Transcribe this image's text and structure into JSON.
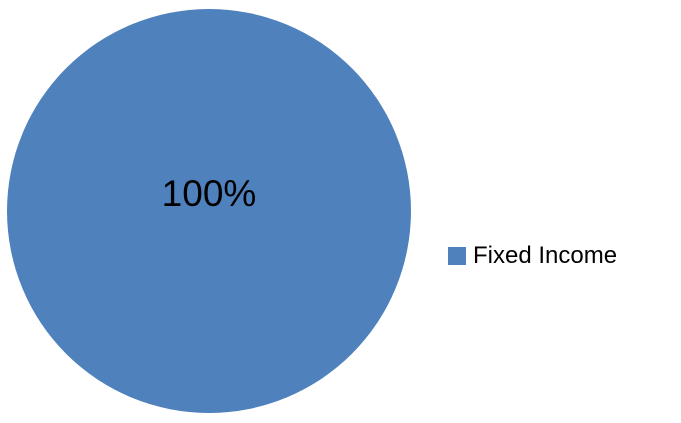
{
  "chart_data": {
    "type": "pie",
    "categories": [
      "Fixed Income"
    ],
    "values": [
      100
    ],
    "data_labels": [
      "100%"
    ],
    "colors": [
      "#4F81BD"
    ],
    "title": "",
    "legend_position": "right"
  },
  "legend": {
    "items": [
      {
        "label": "Fixed Income",
        "color": "#4F81BD"
      }
    ]
  }
}
